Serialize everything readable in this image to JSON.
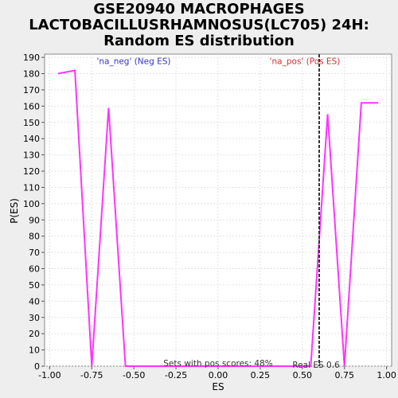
{
  "chart_data": {
    "type": "line",
    "title_lines": [
      "GSE20940 MACROPHAGES",
      "LACTOBACILLUSRHAMNOSUS(LC705) 24H:",
      "Random ES distribution"
    ],
    "xlabel": "ES",
    "ylabel": "P(ES)",
    "xlim": [
      -1.03,
      1.03
    ],
    "ylim": [
      0,
      192
    ],
    "xticks": [
      -1.0,
      -0.75,
      -0.5,
      -0.25,
      0.0,
      0.25,
      0.5,
      0.75,
      1.0
    ],
    "xtick_labels": [
      "-1.00",
      "-0.75",
      "-0.50",
      "-0.25",
      "0.00",
      "0.25",
      "0.50",
      "0.75",
      "1.00"
    ],
    "yticks": [
      0,
      10,
      20,
      30,
      40,
      50,
      60,
      70,
      80,
      90,
      100,
      110,
      120,
      130,
      140,
      150,
      160,
      170,
      180,
      190
    ],
    "grid": true,
    "series": [
      {
        "color": "#ff33ff",
        "x": [
          -0.95,
          -0.85,
          -0.75,
          -0.65,
          -0.55,
          -0.45,
          -0.35,
          -0.25,
          -0.15,
          -0.05,
          0.05,
          0.15,
          0.25,
          0.35,
          0.45,
          0.55,
          0.65,
          0.75,
          0.85,
          0.95
        ],
        "y": [
          180,
          182,
          0,
          159,
          0,
          0,
          0,
          0,
          0,
          0,
          0,
          0,
          0,
          0,
          0,
          0,
          155,
          0,
          162,
          162
        ]
      }
    ],
    "real_es": 0.6,
    "annotations": {
      "neg_label": "'na_neg' (Neg ES)",
      "neg_color": "#3333cc",
      "pos_label": "'na_pos' (Pos ES)",
      "pos_color": "#cc3333",
      "sets_text": "Sets with pos scores: 48%",
      "real_es_text": "Real ES 0.6"
    }
  }
}
